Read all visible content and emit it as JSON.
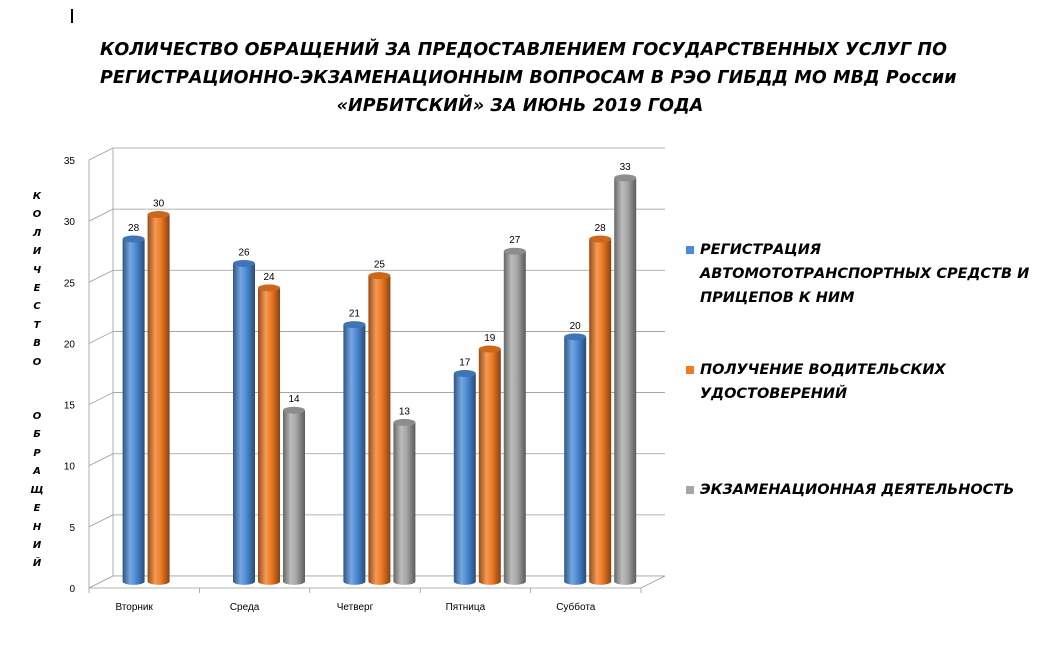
{
  "chart_data": {
    "type": "bar",
    "title_lines": [
      "КОЛИЧЕСТВО ОБРАЩЕНИЙ ЗА ПРЕДОСТАВЛЕНИЕМ ГОСУДАРСТВЕННЫХ УСЛУГ ПО",
      "РЕГИСТРАЦИОННО-ЭКЗАМЕНАЦИОННЫМ  ВОПРОСАМ В РЭО ГИБДД МО МВД России",
      "«ИРБИТСКИЙ» ЗА ИЮНЬ 2019 ГОДА"
    ],
    "ylabel": "КОЛИЧЕСТВО ОБРАЩЕНИЙ",
    "xlabel": "",
    "categories": [
      "Вторник",
      "Среда",
      "Четверг",
      "Пятница",
      "Суббота"
    ],
    "ylim": [
      0,
      35
    ],
    "yticks": [
      0,
      5,
      10,
      15,
      20,
      25,
      30,
      35
    ],
    "grid": true,
    "legend_position": "right",
    "series": [
      {
        "name": "РЕГИСТРАЦИЯ АВТОМОТОТРАНСПОРТНЫХ СРЕДСТВ И ПРИЦЕПОВ К НИМ",
        "color": "#4a8ad6",
        "values": [
          28,
          26,
          21,
          17,
          20
        ]
      },
      {
        "name": "ПОЛУЧЕНИЕ ВОДИТЕЛЬСКИХ УДОСТОВЕРЕНИЙ",
        "color": "#f07a22",
        "values": [
          30,
          24,
          25,
          19,
          28
        ]
      },
      {
        "name": "ЭКЗАМЕНАЦИОННАЯ ДЕЯТЕЛЬНОСТЬ",
        "color": "#a6a6a6",
        "values": [
          null,
          14,
          13,
          27,
          33
        ]
      }
    ]
  }
}
